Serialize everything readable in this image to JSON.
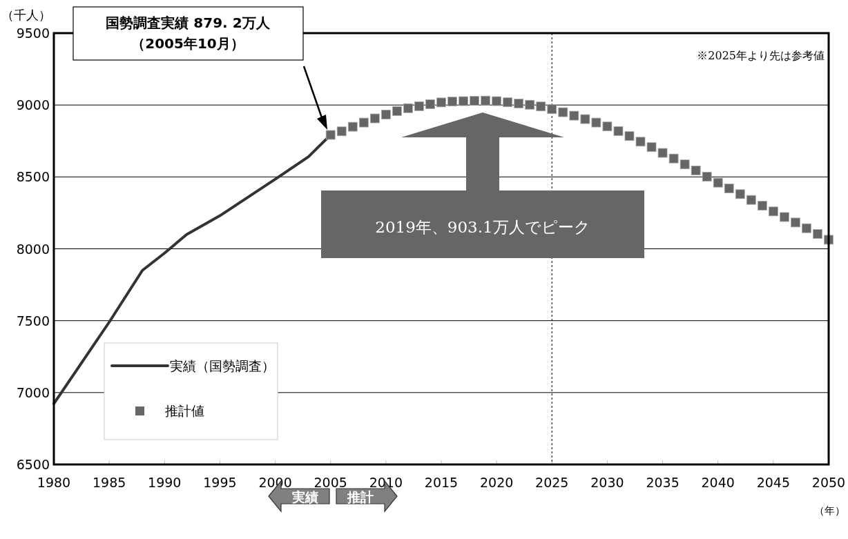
{
  "chart_data": {
    "type": "line",
    "xlabel": "（年）",
    "ylabel": "（千人）",
    "xlim": [
      1980,
      2050
    ],
    "xticks": [
      1980,
      1985,
      1990,
      1995,
      2000,
      2005,
      2010,
      2015,
      2020,
      2025,
      2030,
      2035,
      2040,
      2045,
      2050
    ],
    "ylim": [
      6500,
      9500
    ],
    "yticks": [
      6500,
      7000,
      7500,
      8000,
      8500,
      9000,
      9500
    ],
    "grid": "y",
    "legend": "bottom left",
    "series": [
      {
        "name": "実績（国勢調査）",
        "color": "#333333",
        "marker": "none",
        "line_style": "solid",
        "x": [
          1980,
          1985,
          1988,
          1990,
          1992,
          1995,
          2000,
          2003,
          2005
        ],
        "values": [
          6923,
          7490,
          7850,
          7970,
          8100,
          8230,
          8484,
          8640,
          8792
        ]
      },
      {
        "name": "推計値",
        "type": "scatter",
        "color": "#666666",
        "marker": "square",
        "x": [
          2005,
          2006,
          2007,
          2008,
          2009,
          2010,
          2011,
          2012,
          2013,
          2014,
          2015,
          2016,
          2017,
          2018,
          2019,
          2020,
          2021,
          2022,
          2023,
          2024,
          2025,
          2026,
          2027,
          2028,
          2029,
          2030,
          2031,
          2032,
          2033,
          2034,
          2035,
          2036,
          2037,
          2038,
          2039,
          2040,
          2041,
          2042,
          2043,
          2044,
          2045,
          2046,
          2047,
          2048,
          2049,
          2050
        ],
        "values": [
          8792,
          8817,
          8849,
          8878,
          8907,
          8934,
          8958,
          8978,
          8992,
          9006,
          9018,
          9024,
          9027,
          9029,
          9031,
          9027,
          9019,
          9011,
          9002,
          8990,
          8971,
          8950,
          8926,
          8902,
          8878,
          8851,
          8819,
          8784,
          8745,
          8707,
          8667,
          8628,
          8587,
          8545,
          8502,
          8460,
          8420,
          8380,
          8340,
          8300,
          8260,
          8221,
          8183,
          8143,
          8103,
          8063
        ]
      }
    ],
    "ref_lines": [
      {
        "axis": "x",
        "value": 2025,
        "color": "#000000",
        "line_style": "dashed"
      }
    ],
    "annotations": [
      "国勢調査実績 879. 2万人",
      "（2005年10月）",
      "2019年、903.1万人でピーク",
      "※2025年より先は参考値",
      "実績",
      "推計"
    ]
  }
}
